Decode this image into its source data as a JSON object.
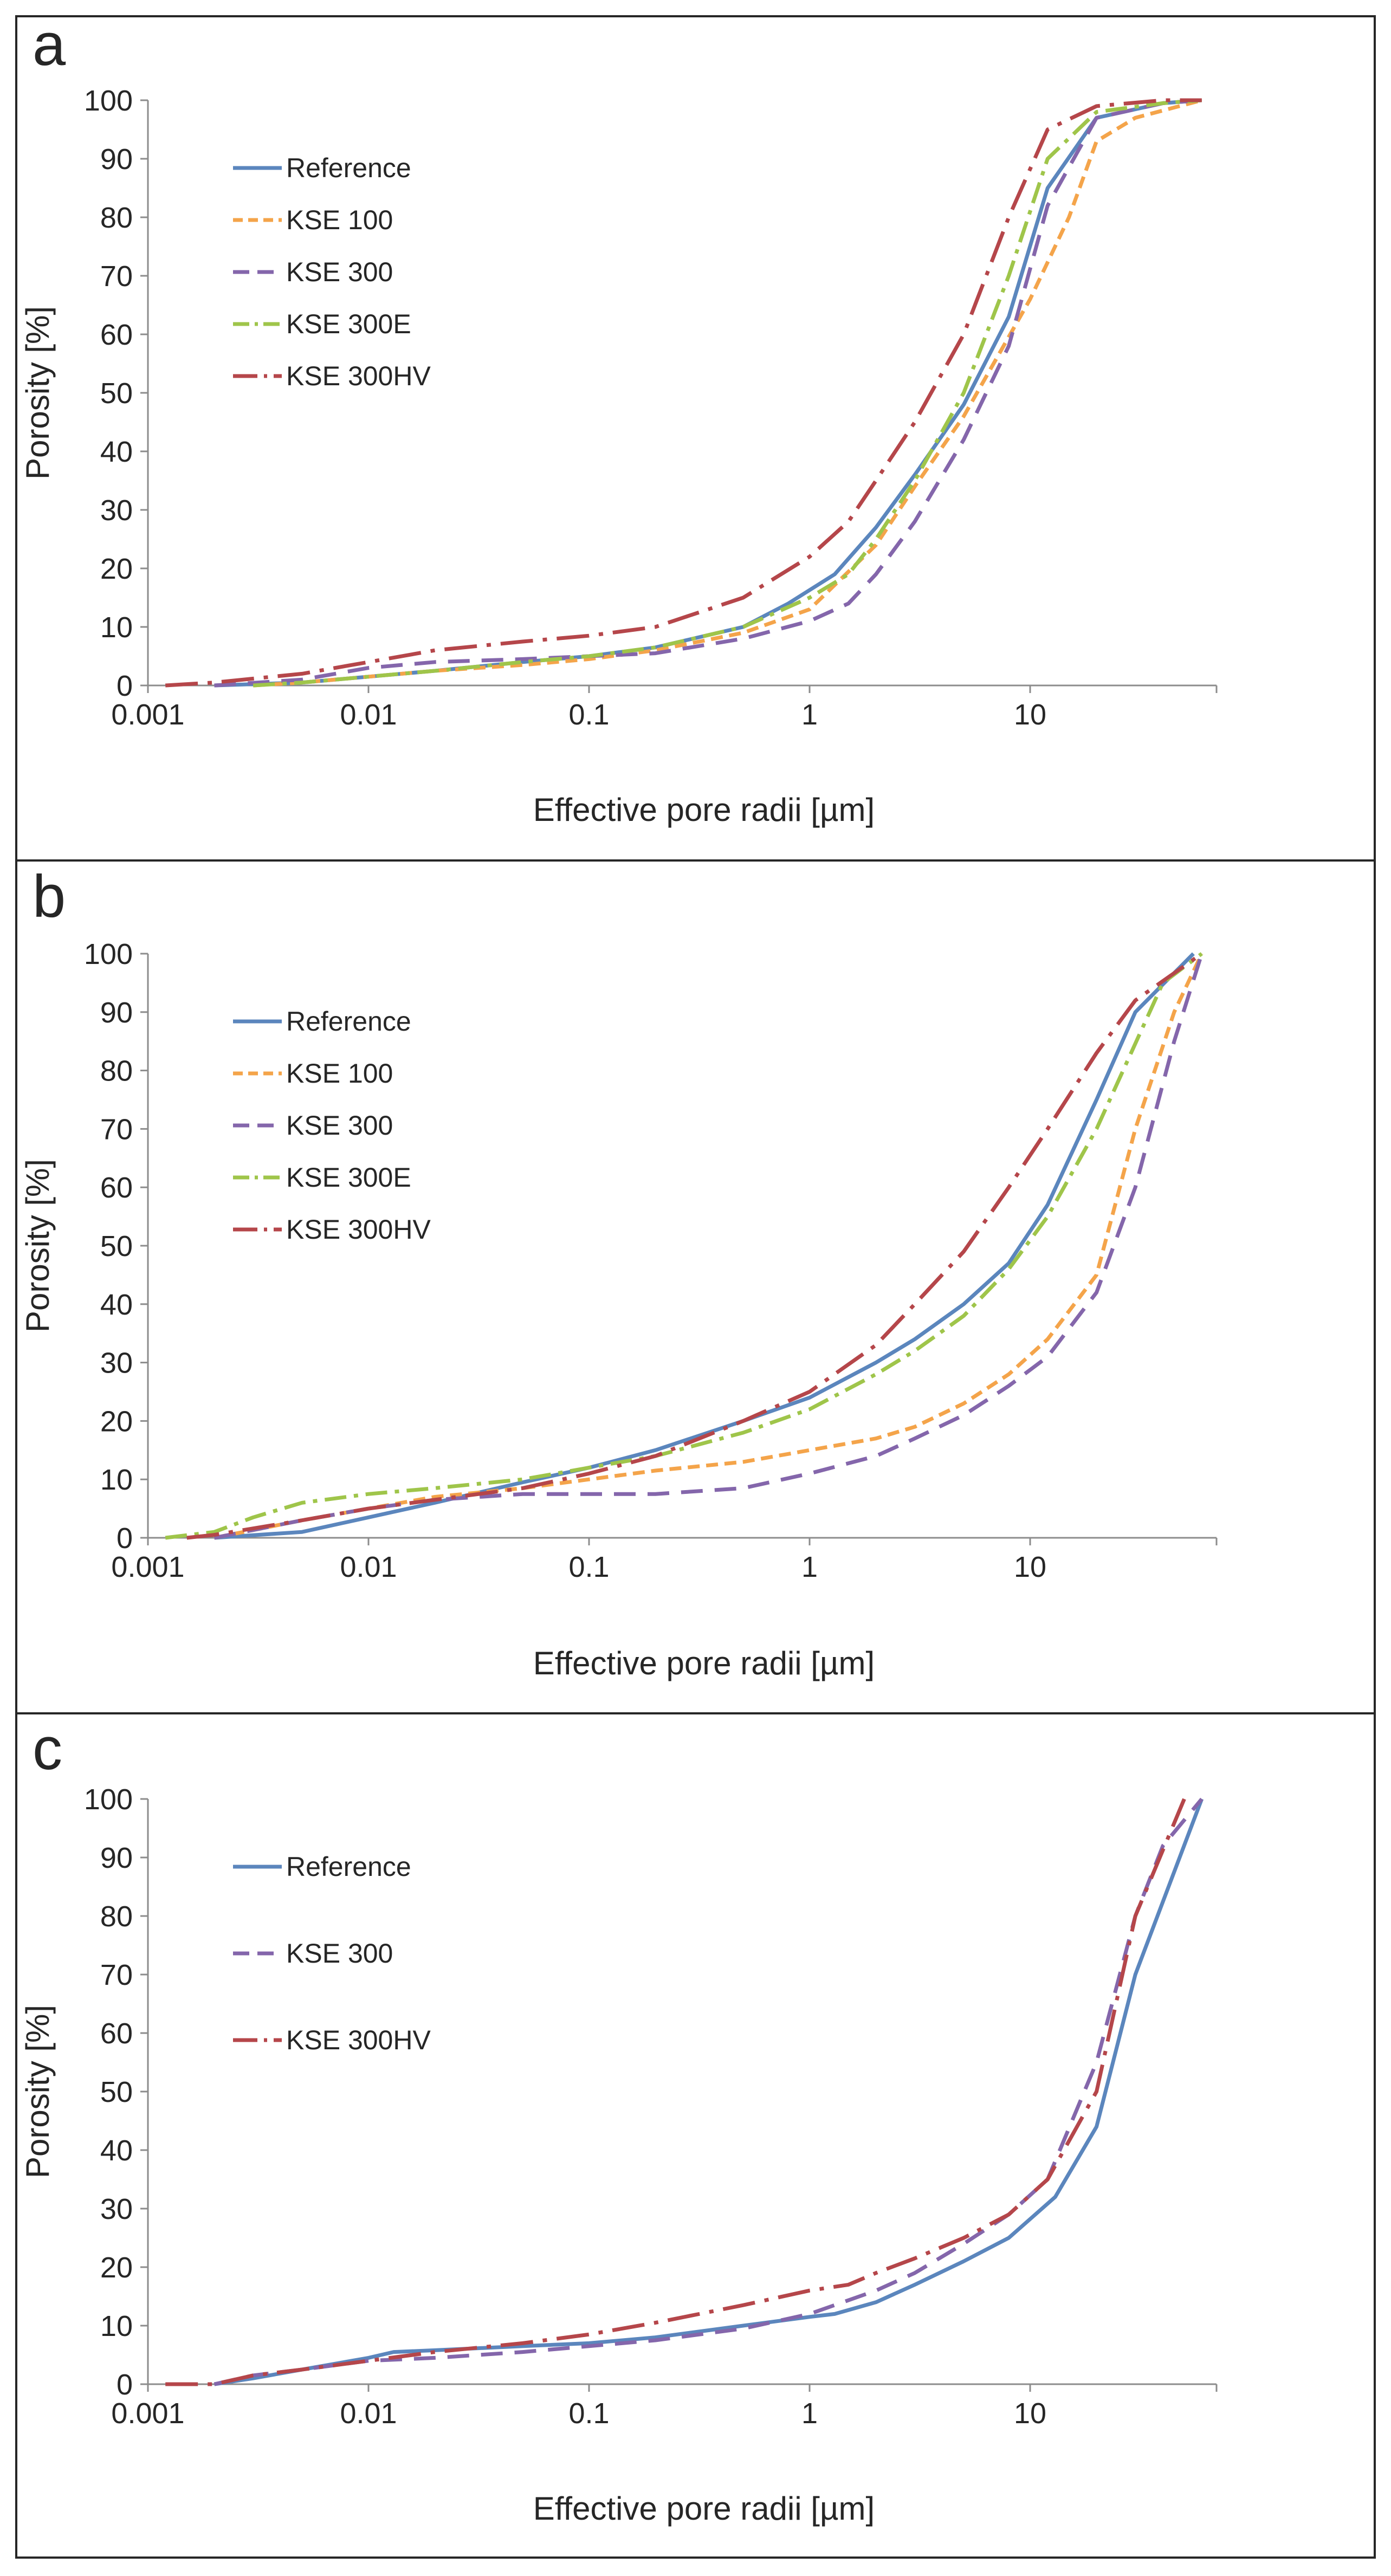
{
  "colors": {
    "Reference": "#5b86bd",
    "KSE 100": "#f4a44a",
    "KSE 300": "#8466ab",
    "KSE 300E": "#9fc54a",
    "KSE 300HV": "#b5464a",
    "frame": "#262626",
    "axis": "#8c8c8c"
  },
  "chart_data": [
    {
      "type": "line",
      "panel_label": "a",
      "xlabel": "Effective pore radii [µm]",
      "ylabel": "Porosity [%]",
      "xscale": "log",
      "xlim": [
        0.001,
        70
      ],
      "ylim": [
        0,
        100
      ],
      "x_ticks": [
        "0.001",
        "0.01",
        "0.1",
        "1",
        "10"
      ],
      "y_ticks": [
        "0",
        "10",
        "20",
        "30",
        "40",
        "50",
        "60",
        "70",
        "80",
        "90",
        "100"
      ],
      "legend": [
        "Reference",
        "KSE 100",
        "KSE 300",
        "KSE 300E",
        "KSE 300HV"
      ],
      "series": [
        {
          "name": "Reference",
          "x": [
            0.002,
            0.005,
            0.01,
            0.02,
            0.05,
            0.1,
            0.2,
            0.5,
            0.8,
            1.3,
            2,
            3,
            5,
            8,
            12,
            20,
            40,
            60
          ],
          "y": [
            0,
            0.5,
            1.5,
            2.5,
            4,
            5,
            6.5,
            10,
            14,
            19,
            27,
            36,
            48,
            63,
            85,
            97,
            99.5,
            100
          ]
        },
        {
          "name": "KSE 100",
          "x": [
            0.003,
            0.005,
            0.01,
            0.02,
            0.05,
            0.1,
            0.2,
            0.5,
            1,
            2,
            3,
            5,
            10,
            15,
            20,
            30,
            60
          ],
          "y": [
            0,
            0.5,
            1.5,
            2.5,
            3.5,
            4.5,
            6,
            9,
            13,
            24,
            34,
            46,
            66,
            80,
            93,
            97,
            100
          ]
        },
        {
          "name": "KSE 300",
          "x": [
            0.002,
            0.005,
            0.01,
            0.02,
            0.05,
            0.1,
            0.2,
            0.5,
            1,
            1.5,
            2,
            3,
            5,
            8,
            12,
            20,
            40,
            60
          ],
          "y": [
            0,
            1,
            3,
            4,
            4.5,
            5,
            5.5,
            8,
            11,
            14,
            19,
            28,
            42,
            58,
            82,
            97,
            99.5,
            100
          ]
        },
        {
          "name": "KSE 300E",
          "x": [
            0.003,
            0.005,
            0.01,
            0.02,
            0.05,
            0.1,
            0.2,
            0.5,
            1,
            1.5,
            2,
            3,
            5,
            8,
            12,
            20,
            40,
            60
          ],
          "y": [
            0,
            0.5,
            1.5,
            2.5,
            4,
            5,
            6.5,
            10,
            15,
            19,
            25,
            35,
            50,
            70,
            90,
            98,
            99.5,
            100
          ]
        },
        {
          "name": "KSE 300HV",
          "x": [
            0.0012,
            0.002,
            0.005,
            0.01,
            0.02,
            0.05,
            0.1,
            0.2,
            0.5,
            1,
            1.5,
            2,
            3,
            5,
            8,
            12,
            20,
            40,
            60
          ],
          "y": [
            0,
            0.5,
            2,
            4,
            6,
            7.5,
            8.5,
            10,
            15,
            22,
            28,
            35,
            45,
            60,
            80,
            95,
            99,
            100,
            100
          ]
        }
      ]
    },
    {
      "type": "line",
      "panel_label": "b",
      "xlabel": "Effective pore radii [µm]",
      "ylabel": "Porosity [%]",
      "xscale": "log",
      "xlim": [
        0.001,
        70
      ],
      "ylim": [
        0,
        100
      ],
      "x_ticks": [
        "0.001",
        "0.01",
        "0.1",
        "1",
        "10"
      ],
      "y_ticks": [
        "0",
        "10",
        "20",
        "30",
        "40",
        "50",
        "60",
        "70",
        "80",
        "90",
        "100"
      ],
      "legend": [
        "Reference",
        "KSE 100",
        "KSE 300",
        "KSE 300E",
        "KSE 300HV"
      ],
      "series": [
        {
          "name": "Reference",
          "x": [
            0.002,
            0.005,
            0.01,
            0.02,
            0.05,
            0.1,
            0.2,
            0.5,
            1,
            2,
            3,
            5,
            8,
            12,
            20,
            30,
            55
          ],
          "y": [
            0,
            1,
            3.5,
            6,
            9.5,
            12,
            15,
            20,
            24,
            30,
            34,
            40,
            47,
            57,
            75,
            90,
            100
          ]
        },
        {
          "name": "KSE 100",
          "x": [
            0.002,
            0.005,
            0.01,
            0.02,
            0.05,
            0.1,
            0.2,
            0.5,
            1,
            2,
            3,
            5,
            8,
            12,
            20,
            30,
            45,
            60
          ],
          "y": [
            0,
            3,
            5,
            7,
            8.5,
            10,
            11.5,
            13,
            15,
            17,
            19,
            23,
            28,
            34,
            45,
            70,
            90,
            100
          ]
        },
        {
          "name": "KSE 300",
          "x": [
            0.002,
            0.005,
            0.01,
            0.02,
            0.05,
            0.1,
            0.2,
            0.5,
            1,
            2,
            3,
            5,
            8,
            12,
            20,
            30,
            45,
            60
          ],
          "y": [
            0,
            3,
            5,
            6.5,
            7.5,
            7.5,
            7.5,
            8.5,
            11,
            14,
            17,
            21,
            26,
            31,
            42,
            60,
            85,
            100
          ]
        },
        {
          "name": "KSE 300E",
          "x": [
            0.0012,
            0.002,
            0.003,
            0.005,
            0.01,
            0.02,
            0.05,
            0.1,
            0.2,
            0.5,
            1,
            2,
            3,
            5,
            8,
            12,
            20,
            40,
            60
          ],
          "y": [
            0,
            1,
            3.5,
            6,
            7.5,
            8.5,
            10,
            12,
            14,
            18,
            22,
            28,
            32,
            38,
            46,
            55,
            70,
            95,
            100
          ]
        },
        {
          "name": "KSE 300HV",
          "x": [
            0.0015,
            0.002,
            0.005,
            0.01,
            0.02,
            0.05,
            0.1,
            0.2,
            0.5,
            1,
            2,
            3,
            5,
            8,
            12,
            20,
            30,
            60
          ],
          "y": [
            0,
            0.5,
            3,
            5,
            6.5,
            8.5,
            11,
            14,
            20,
            25,
            33,
            40,
            49,
            60,
            70,
            83,
            92,
            100
          ]
        }
      ]
    },
    {
      "type": "line",
      "panel_label": "c",
      "xlabel": "Effective pore radii [µm]",
      "ylabel": "Porosity [%]",
      "xscale": "log",
      "xlim": [
        0.001,
        70
      ],
      "ylim": [
        0,
        100
      ],
      "x_ticks": [
        "0.001",
        "0.01",
        "0.1",
        "1",
        "10"
      ],
      "y_ticks": [
        "0",
        "10",
        "20",
        "30",
        "40",
        "50",
        "60",
        "70",
        "80",
        "90",
        "100"
      ],
      "legend": [
        "Reference",
        "KSE 300",
        "KSE 300HV"
      ],
      "series": [
        {
          "name": "Reference",
          "x": [
            0.002,
            0.003,
            0.005,
            0.01,
            0.013,
            0.02,
            0.05,
            0.1,
            0.2,
            0.5,
            1,
            1.3,
            2,
            3,
            5,
            8,
            13,
            20,
            30,
            60
          ],
          "y": [
            0,
            1,
            2.5,
            4.5,
            5.5,
            5.8,
            6.5,
            7,
            8,
            10,
            11.5,
            12,
            14,
            17,
            21,
            25,
            32,
            44,
            70,
            100
          ]
        },
        {
          "name": "KSE 300",
          "x": [
            0.002,
            0.003,
            0.005,
            0.01,
            0.02,
            0.05,
            0.1,
            0.2,
            0.5,
            1,
            2,
            3,
            5,
            8,
            12,
            20,
            30,
            40,
            60
          ],
          "y": [
            0,
            1.5,
            2.5,
            4,
            4.5,
            5.5,
            6.5,
            7.5,
            9.5,
            12,
            16,
            19,
            24,
            29,
            35,
            55,
            80,
            92,
            100
          ]
        },
        {
          "name": "KSE 300HV",
          "x": [
            0.0012,
            0.002,
            0.003,
            0.005,
            0.01,
            0.02,
            0.05,
            0.1,
            0.2,
            0.5,
            1,
            1.5,
            2,
            3,
            5,
            8,
            12,
            20,
            30,
            50
          ],
          "y": [
            0,
            0,
            1.5,
            2.5,
            4,
            5.5,
            7,
            8.5,
            10.5,
            13.5,
            16,
            17,
            19,
            21.5,
            25,
            29,
            35,
            50,
            80,
            100
          ]
        }
      ]
    }
  ]
}
